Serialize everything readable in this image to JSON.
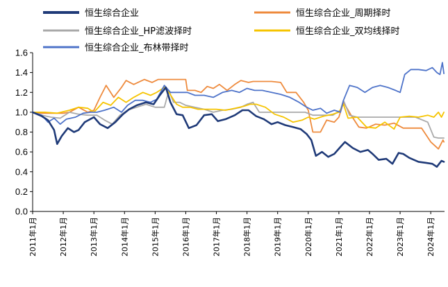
{
  "chart_data": {
    "type": "line",
    "title": "",
    "xlabel": "",
    "ylabel": "",
    "ylim": [
      0.0,
      1.6
    ],
    "yticks": [
      "0.0",
      "0.2",
      "0.4",
      "0.6",
      "0.8",
      "1.0",
      "1.2",
      "1.4",
      "1.6"
    ],
    "xlim": [
      2011.0,
      2024.45
    ],
    "xticks": [
      {
        "label": "2011年1月",
        "t": 2011.0
      },
      {
        "label": "2012年1月",
        "t": 2012.0
      },
      {
        "label": "2013年1月",
        "t": 2013.0
      },
      {
        "label": "2014年1月",
        "t": 2014.0
      },
      {
        "label": "2015年1月",
        "t": 2015.0
      },
      {
        "label": "2016年1月",
        "t": 2016.0
      },
      {
        "label": "2017年1月",
        "t": 2017.0
      },
      {
        "label": "2018年1月",
        "t": 2018.0
      },
      {
        "label": "2019年1月",
        "t": 2019.0
      },
      {
        "label": "2020年1月",
        "t": 2020.0
      },
      {
        "label": "2021年1月",
        "t": 2021.0
      },
      {
        "label": "2022年1月",
        "t": 2022.0
      },
      {
        "label": "2023年1月",
        "t": 2023.0
      },
      {
        "label": "2024年1月",
        "t": 2024.0
      }
    ],
    "grid": false,
    "legend_position": "top",
    "series": [
      {
        "name": "恒生综合企业",
        "color": "#1f3a78",
        "width": 2.6,
        "points": [
          [
            2011.0,
            1.0
          ],
          [
            2011.3,
            0.96
          ],
          [
            2011.5,
            0.92
          ],
          [
            2011.7,
            0.82
          ],
          [
            2011.8,
            0.68
          ],
          [
            2011.95,
            0.76
          ],
          [
            2012.15,
            0.84
          ],
          [
            2012.35,
            0.8
          ],
          [
            2012.5,
            0.82
          ],
          [
            2012.7,
            0.9
          ],
          [
            2013.0,
            0.95
          ],
          [
            2013.2,
            0.88
          ],
          [
            2013.45,
            0.84
          ],
          [
            2013.7,
            0.9
          ],
          [
            2013.95,
            0.98
          ],
          [
            2014.15,
            1.03
          ],
          [
            2014.4,
            1.07
          ],
          [
            2014.7,
            1.1
          ],
          [
            2014.95,
            1.08
          ],
          [
            2015.15,
            1.17
          ],
          [
            2015.35,
            1.25
          ],
          [
            2015.5,
            1.1
          ],
          [
            2015.7,
            0.98
          ],
          [
            2015.9,
            0.97
          ],
          [
            2016.1,
            0.84
          ],
          [
            2016.35,
            0.87
          ],
          [
            2016.6,
            0.97
          ],
          [
            2016.85,
            0.98
          ],
          [
            2017.05,
            0.91
          ],
          [
            2017.3,
            0.93
          ],
          [
            2017.6,
            0.97
          ],
          [
            2017.85,
            1.02
          ],
          [
            2018.05,
            1.02
          ],
          [
            2018.3,
            0.96
          ],
          [
            2018.55,
            0.93
          ],
          [
            2018.8,
            0.88
          ],
          [
            2019.0,
            0.9
          ],
          [
            2019.25,
            0.87
          ],
          [
            2019.5,
            0.85
          ],
          [
            2019.75,
            0.83
          ],
          [
            2019.95,
            0.78
          ],
          [
            2020.1,
            0.72
          ],
          [
            2020.25,
            0.56
          ],
          [
            2020.45,
            0.6
          ],
          [
            2020.65,
            0.55
          ],
          [
            2020.85,
            0.58
          ],
          [
            2021.05,
            0.65
          ],
          [
            2021.2,
            0.7
          ],
          [
            2021.45,
            0.64
          ],
          [
            2021.7,
            0.6
          ],
          [
            2021.95,
            0.62
          ],
          [
            2022.1,
            0.58
          ],
          [
            2022.3,
            0.52
          ],
          [
            2022.55,
            0.53
          ],
          [
            2022.75,
            0.48
          ],
          [
            2022.95,
            0.59
          ],
          [
            2023.1,
            0.58
          ],
          [
            2023.3,
            0.54
          ],
          [
            2023.6,
            0.5
          ],
          [
            2023.85,
            0.49
          ],
          [
            2024.05,
            0.48
          ],
          [
            2024.2,
            0.45
          ],
          [
            2024.35,
            0.51
          ],
          [
            2024.43,
            0.5
          ]
        ]
      },
      {
        "name": "恒生综合企业_周期择时",
        "color": "#ee8a3c",
        "width": 1.8,
        "points": [
          [
            2011.0,
            1.0
          ],
          [
            2011.3,
            0.99
          ],
          [
            2011.7,
            0.99
          ],
          [
            2012.0,
            0.99
          ],
          [
            2012.2,
            1.0
          ],
          [
            2012.5,
            1.05
          ],
          [
            2012.8,
            1.0
          ],
          [
            2013.0,
            1.02
          ],
          [
            2013.2,
            1.15
          ],
          [
            2013.4,
            1.27
          ],
          [
            2013.65,
            1.15
          ],
          [
            2013.9,
            1.25
          ],
          [
            2014.05,
            1.32
          ],
          [
            2014.3,
            1.28
          ],
          [
            2014.65,
            1.33
          ],
          [
            2014.9,
            1.3
          ],
          [
            2015.1,
            1.33
          ],
          [
            2015.15,
            1.33
          ],
          [
            2015.5,
            1.33
          ],
          [
            2016.0,
            1.33
          ],
          [
            2016.05,
            1.22
          ],
          [
            2016.3,
            1.22
          ],
          [
            2016.5,
            1.2
          ],
          [
            2016.7,
            1.26
          ],
          [
            2016.9,
            1.24
          ],
          [
            2017.1,
            1.28
          ],
          [
            2017.35,
            1.22
          ],
          [
            2017.6,
            1.28
          ],
          [
            2017.8,
            1.32
          ],
          [
            2018.05,
            1.3
          ],
          [
            2018.2,
            1.31
          ],
          [
            2018.5,
            1.31
          ],
          [
            2018.8,
            1.31
          ],
          [
            2019.1,
            1.3
          ],
          [
            2019.3,
            1.2
          ],
          [
            2019.6,
            1.2
          ],
          [
            2019.85,
            1.1
          ],
          [
            2020.0,
            1.02
          ],
          [
            2020.15,
            0.8
          ],
          [
            2020.4,
            0.8
          ],
          [
            2020.6,
            0.92
          ],
          [
            2020.85,
            0.9
          ],
          [
            2021.0,
            0.95
          ],
          [
            2021.15,
            1.1
          ],
          [
            2021.4,
            0.97
          ],
          [
            2021.65,
            0.85
          ],
          [
            2021.9,
            0.84
          ],
          [
            2022.2,
            0.88
          ],
          [
            2022.5,
            0.87
          ],
          [
            2022.8,
            0.89
          ],
          [
            2023.1,
            0.84
          ],
          [
            2023.4,
            0.84
          ],
          [
            2023.7,
            0.84
          ],
          [
            2024.0,
            0.7
          ],
          [
            2024.25,
            0.63
          ],
          [
            2024.4,
            0.72
          ],
          [
            2024.43,
            0.7
          ]
        ]
      },
      {
        "name": "恒生综合企业_HP滤波择时",
        "color": "#a9a9a9",
        "width": 1.8,
        "points": [
          [
            2011.0,
            1.0
          ],
          [
            2011.3,
            0.97
          ],
          [
            2011.6,
            0.95
          ],
          [
            2011.9,
            0.94
          ],
          [
            2012.2,
            1.0
          ],
          [
            2012.5,
            0.98
          ],
          [
            2012.8,
            0.97
          ],
          [
            2013.1,
            0.97
          ],
          [
            2013.35,
            0.92
          ],
          [
            2013.6,
            0.88
          ],
          [
            2013.85,
            0.97
          ],
          [
            2014.1,
            1.02
          ],
          [
            2014.4,
            1.05
          ],
          [
            2014.7,
            1.08
          ],
          [
            2015.0,
            1.05
          ],
          [
            2015.3,
            1.05
          ],
          [
            2015.45,
            1.22
          ],
          [
            2015.6,
            1.1
          ],
          [
            2015.8,
            1.1
          ],
          [
            2016.0,
            1.07
          ],
          [
            2016.3,
            1.05
          ],
          [
            2016.6,
            1.03
          ],
          [
            2016.9,
            1.0
          ],
          [
            2017.2,
            1.02
          ],
          [
            2017.5,
            1.03
          ],
          [
            2017.8,
            1.05
          ],
          [
            2018.0,
            1.08
          ],
          [
            2018.2,
            1.1
          ],
          [
            2018.4,
            1.0
          ],
          [
            2018.7,
            1.0
          ],
          [
            2019.0,
            1.0
          ],
          [
            2019.3,
            1.0
          ],
          [
            2019.6,
            1.0
          ],
          [
            2019.9,
            1.0
          ],
          [
            2020.15,
            0.97
          ],
          [
            2020.5,
            0.97
          ],
          [
            2020.8,
            0.97
          ],
          [
            2021.05,
            1.02
          ],
          [
            2021.15,
            1.12
          ],
          [
            2021.35,
            0.97
          ],
          [
            2021.6,
            0.95
          ],
          [
            2022.0,
            0.95
          ],
          [
            2022.5,
            0.95
          ],
          [
            2023.0,
            0.95
          ],
          [
            2023.5,
            0.95
          ],
          [
            2023.9,
            0.9
          ],
          [
            2024.1,
            0.75
          ],
          [
            2024.25,
            0.74
          ],
          [
            2024.43,
            0.74
          ]
        ]
      },
      {
        "name": "恒生综合企业_双均线择时",
        "color": "#f6c400",
        "width": 1.8,
        "points": [
          [
            2011.0,
            1.0
          ],
          [
            2011.4,
            1.0
          ],
          [
            2011.8,
            0.99
          ],
          [
            2012.2,
            1.02
          ],
          [
            2012.5,
            1.05
          ],
          [
            2012.8,
            1.04
          ],
          [
            2013.0,
            1.0
          ],
          [
            2013.3,
            1.1
          ],
          [
            2013.55,
            1.07
          ],
          [
            2013.8,
            1.15
          ],
          [
            2014.05,
            1.1
          ],
          [
            2014.3,
            1.15
          ],
          [
            2014.6,
            1.2
          ],
          [
            2014.85,
            1.17
          ],
          [
            2015.05,
            1.2
          ],
          [
            2015.3,
            1.25
          ],
          [
            2015.45,
            1.2
          ],
          [
            2015.7,
            1.08
          ],
          [
            2015.9,
            1.05
          ],
          [
            2016.15,
            1.05
          ],
          [
            2016.4,
            1.03
          ],
          [
            2016.7,
            1.03
          ],
          [
            2017.0,
            1.03
          ],
          [
            2017.3,
            1.02
          ],
          [
            2017.6,
            1.04
          ],
          [
            2017.9,
            1.06
          ],
          [
            2018.1,
            1.08
          ],
          [
            2018.3,
            1.08
          ],
          [
            2018.6,
            1.05
          ],
          [
            2018.9,
            0.98
          ],
          [
            2019.2,
            0.95
          ],
          [
            2019.5,
            0.9
          ],
          [
            2019.8,
            0.92
          ],
          [
            2020.0,
            0.95
          ],
          [
            2020.2,
            0.93
          ],
          [
            2020.5,
            0.96
          ],
          [
            2020.8,
            0.98
          ],
          [
            2021.0,
            1.0
          ],
          [
            2021.15,
            1.08
          ],
          [
            2021.3,
            0.94
          ],
          [
            2021.6,
            0.95
          ],
          [
            2021.9,
            0.85
          ],
          [
            2022.2,
            0.84
          ],
          [
            2022.5,
            0.9
          ],
          [
            2022.8,
            0.83
          ],
          [
            2023.0,
            0.95
          ],
          [
            2023.3,
            0.96
          ],
          [
            2023.6,
            0.95
          ],
          [
            2023.9,
            0.97
          ],
          [
            2024.1,
            0.95
          ],
          [
            2024.25,
            1.0
          ],
          [
            2024.35,
            0.95
          ],
          [
            2024.43,
            1.0
          ]
        ]
      },
      {
        "name": "恒生综合企业_布林带择时",
        "color": "#4e73c9",
        "width": 1.8,
        "points": [
          [
            2011.0,
            1.0
          ],
          [
            2011.3,
            0.97
          ],
          [
            2011.5,
            0.9
          ],
          [
            2011.7,
            0.94
          ],
          [
            2011.9,
            0.88
          ],
          [
            2012.1,
            0.93
          ],
          [
            2012.4,
            0.95
          ],
          [
            2012.65,
            0.99
          ],
          [
            2012.9,
            1.0
          ],
          [
            2013.1,
            1.0
          ],
          [
            2013.35,
            1.02
          ],
          [
            2013.65,
            1.05
          ],
          [
            2013.9,
            1.0
          ],
          [
            2014.1,
            1.07
          ],
          [
            2014.35,
            1.12
          ],
          [
            2014.6,
            1.12
          ],
          [
            2014.85,
            1.1
          ],
          [
            2015.05,
            1.13
          ],
          [
            2015.3,
            1.27
          ],
          [
            2015.5,
            1.2
          ],
          [
            2015.8,
            1.2
          ],
          [
            2016.05,
            1.2
          ],
          [
            2016.3,
            1.17
          ],
          [
            2016.6,
            1.17
          ],
          [
            2016.9,
            1.15
          ],
          [
            2017.2,
            1.2
          ],
          [
            2017.5,
            1.22
          ],
          [
            2017.75,
            1.2
          ],
          [
            2018.0,
            1.24
          ],
          [
            2018.25,
            1.22
          ],
          [
            2018.5,
            1.22
          ],
          [
            2018.8,
            1.2
          ],
          [
            2019.1,
            1.18
          ],
          [
            2019.4,
            1.15
          ],
          [
            2019.7,
            1.1
          ],
          [
            2019.95,
            1.05
          ],
          [
            2020.15,
            1.02
          ],
          [
            2020.4,
            1.04
          ],
          [
            2020.6,
            0.99
          ],
          [
            2020.85,
            1.02
          ],
          [
            2021.05,
            1.0
          ],
          [
            2021.15,
            1.12
          ],
          [
            2021.35,
            1.27
          ],
          [
            2021.6,
            1.25
          ],
          [
            2021.85,
            1.2
          ],
          [
            2022.1,
            1.25
          ],
          [
            2022.35,
            1.27
          ],
          [
            2022.6,
            1.25
          ],
          [
            2022.85,
            1.22
          ],
          [
            2023.0,
            1.2
          ],
          [
            2023.15,
            1.38
          ],
          [
            2023.35,
            1.43
          ],
          [
            2023.6,
            1.43
          ],
          [
            2023.85,
            1.42
          ],
          [
            2024.05,
            1.45
          ],
          [
            2024.2,
            1.4
          ],
          [
            2024.3,
            1.38
          ],
          [
            2024.38,
            1.5
          ],
          [
            2024.43,
            1.39
          ]
        ]
      }
    ]
  }
}
